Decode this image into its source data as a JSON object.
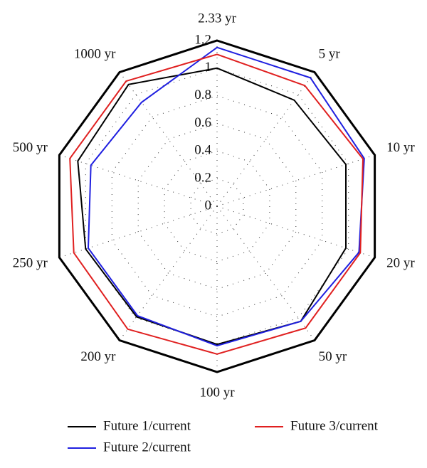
{
  "chart_data": {
    "type": "radar",
    "categories": [
      "2.33 yr",
      "5 yr",
      "10 yr",
      "20 yr",
      "50 yr",
      "100 yr",
      "200 yr",
      "250 yr",
      "500 yr",
      "1000 yr"
    ],
    "ylim": [
      0,
      1.2
    ],
    "yticks": [
      0,
      0.2,
      0.4,
      0.6,
      0.8,
      1,
      1.2
    ],
    "grid": true,
    "legend": "bottom",
    "series": [
      {
        "name": "Future 1/current",
        "color": "#000000",
        "values": [
          1.0,
          0.95,
          0.98,
          0.98,
          1.03,
          1.0,
          0.99,
          1.0,
          1.06,
          1.09
        ]
      },
      {
        "name": "Future 2/current",
        "color": "#1f1fe0",
        "values": [
          1.15,
          1.15,
          1.12,
          1.08,
          1.03,
          1.01,
          0.98,
          0.98,
          0.96,
          0.93
        ]
      },
      {
        "name": "Future 3/current",
        "color": "#e02020",
        "values": [
          1.1,
          1.08,
          1.11,
          1.09,
          1.09,
          1.07,
          1.1,
          1.09,
          1.12,
          1.12
        ]
      }
    ]
  }
}
